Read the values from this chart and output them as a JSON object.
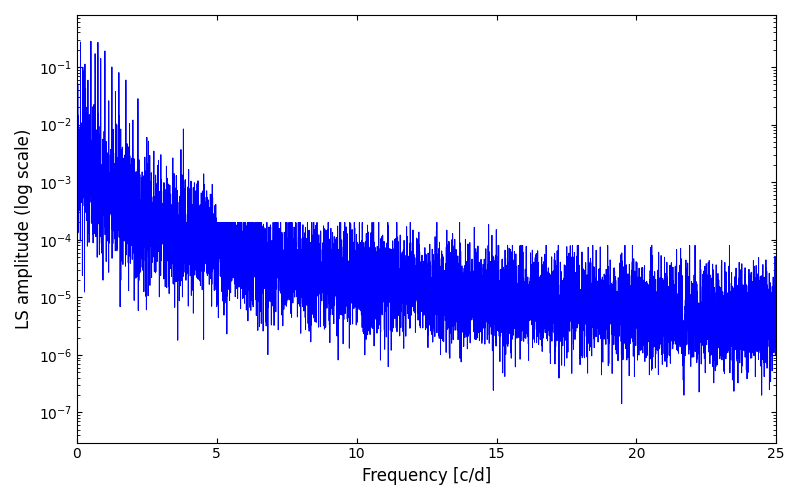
{
  "line_color": "#0000ff",
  "line_width": 0.7,
  "xlabel": "Frequency [c/d]",
  "ylabel": "LS amplitude (log scale)",
  "xlim": [
    0,
    25
  ],
  "ylim": [
    3e-08,
    0.8
  ],
  "background_color": "#ffffff",
  "figsize": [
    8.0,
    5.0
  ],
  "dpi": 100,
  "seed": 17
}
